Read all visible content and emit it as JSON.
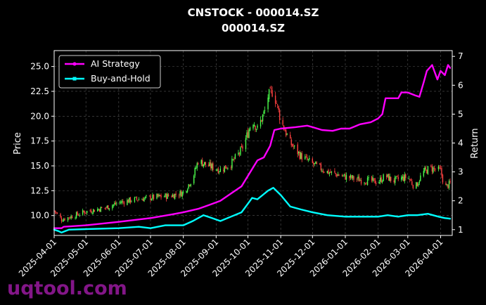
{
  "chart_data": {
    "type": "line",
    "title": "CNSTOCK - 000014.SZ",
    "subtitle": "000014.SZ",
    "ylabel_left": "Price",
    "ylabel_right": "Return",
    "ylim_left": [
      8.0,
      26.6
    ],
    "ylim_right": [
      0.8,
      7.2
    ],
    "yticks_left": [
      "10.0",
      "12.5",
      "15.0",
      "17.5",
      "20.0",
      "22.5",
      "25.0"
    ],
    "yticks_right": [
      "1",
      "2",
      "3",
      "4",
      "5",
      "6",
      "7"
    ],
    "xlim": [
      "2025-04-01",
      "2026-04-12"
    ],
    "xticks": [
      "2025-04-01",
      "2025-05-01",
      "2025-06-01",
      "2025-07-01",
      "2025-08-01",
      "2025-09-01",
      "2025-10-01",
      "2025-11-01",
      "2025-12-01",
      "2026-01-01",
      "2026-02-01",
      "2026-03-01",
      "2026-04-01"
    ],
    "grid": true,
    "legend_position": "top-left",
    "candle_up_color": "#4cff4c",
    "candle_down_color": "#ff4040",
    "series": [
      {
        "name": "AI Strategy",
        "axis": "right",
        "color": "#ff00ff",
        "points": [
          [
            "2025-04-01",
            1.05
          ],
          [
            "2025-04-08",
            1.05
          ],
          [
            "2025-04-10",
            1.1
          ],
          [
            "2025-05-01",
            1.15
          ],
          [
            "2025-06-01",
            1.27
          ],
          [
            "2025-07-01",
            1.4
          ],
          [
            "2025-07-20",
            1.52
          ],
          [
            "2025-08-01",
            1.6
          ],
          [
            "2025-08-15",
            1.72
          ],
          [
            "2025-08-25",
            1.85
          ],
          [
            "2025-09-05",
            2.0
          ],
          [
            "2025-09-15",
            2.25
          ],
          [
            "2025-09-25",
            2.5
          ],
          [
            "2025-10-05",
            3.1
          ],
          [
            "2025-10-10",
            3.4
          ],
          [
            "2025-10-16",
            3.5
          ],
          [
            "2025-10-22",
            3.9
          ],
          [
            "2025-10-26",
            4.45
          ],
          [
            "2025-11-01",
            4.5
          ],
          [
            "2025-11-15",
            4.55
          ],
          [
            "2025-11-26",
            4.6
          ],
          [
            "2025-12-01",
            4.55
          ],
          [
            "2025-12-10",
            4.45
          ],
          [
            "2025-12-20",
            4.42
          ],
          [
            "2025-12-28",
            4.5
          ],
          [
            "2026-01-05",
            4.5
          ],
          [
            "2026-01-15",
            4.65
          ],
          [
            "2026-01-25",
            4.72
          ],
          [
            "2026-02-01",
            4.85
          ],
          [
            "2026-02-05",
            5.0
          ],
          [
            "2026-02-08",
            5.55
          ],
          [
            "2026-02-20",
            5.55
          ],
          [
            "2026-02-23",
            5.75
          ],
          [
            "2026-03-01",
            5.75
          ],
          [
            "2026-03-08",
            5.65
          ],
          [
            "2026-03-12",
            5.6
          ],
          [
            "2026-03-16",
            6.1
          ],
          [
            "2026-03-19",
            6.5
          ],
          [
            "2026-03-24",
            6.7
          ],
          [
            "2026-03-29",
            6.2
          ],
          [
            "2026-04-01",
            6.5
          ],
          [
            "2026-04-05",
            6.35
          ],
          [
            "2026-04-08",
            6.7
          ],
          [
            "2026-04-10",
            6.6
          ]
        ]
      },
      {
        "name": "Buy-and-Hold",
        "axis": "right",
        "color": "#00ffff",
        "points": [
          [
            "2025-04-01",
            1.0
          ],
          [
            "2025-04-05",
            0.95
          ],
          [
            "2025-04-08",
            0.9
          ],
          [
            "2025-04-15",
            1.0
          ],
          [
            "2025-05-01",
            1.02
          ],
          [
            "2025-06-01",
            1.05
          ],
          [
            "2025-06-20",
            1.1
          ],
          [
            "2025-07-01",
            1.05
          ],
          [
            "2025-07-15",
            1.15
          ],
          [
            "2025-08-01",
            1.15
          ],
          [
            "2025-08-10",
            1.3
          ],
          [
            "2025-08-20",
            1.5
          ],
          [
            "2025-08-28",
            1.4
          ],
          [
            "2025-09-05",
            1.3
          ],
          [
            "2025-09-15",
            1.45
          ],
          [
            "2025-09-25",
            1.6
          ],
          [
            "2025-10-01",
            1.9
          ],
          [
            "2025-10-05",
            2.1
          ],
          [
            "2025-10-10",
            2.05
          ],
          [
            "2025-10-15",
            2.2
          ],
          [
            "2025-10-20",
            2.35
          ],
          [
            "2025-10-25",
            2.45
          ],
          [
            "2025-11-01",
            2.2
          ],
          [
            "2025-11-10",
            1.8
          ],
          [
            "2025-11-20",
            1.7
          ],
          [
            "2025-12-01",
            1.6
          ],
          [
            "2025-12-15",
            1.5
          ],
          [
            "2026-01-01",
            1.45
          ],
          [
            "2026-01-15",
            1.45
          ],
          [
            "2026-02-01",
            1.45
          ],
          [
            "2026-02-10",
            1.5
          ],
          [
            "2026-02-20",
            1.45
          ],
          [
            "2026-03-01",
            1.5
          ],
          [
            "2026-03-10",
            1.5
          ],
          [
            "2026-03-20",
            1.55
          ],
          [
            "2026-03-30",
            1.45
          ],
          [
            "2026-04-05",
            1.4
          ],
          [
            "2026-04-10",
            1.38
          ]
        ]
      }
    ],
    "price_path": [
      [
        "2025-04-01",
        10.5
      ],
      [
        "2025-04-08",
        9.6
      ],
      [
        "2025-04-20",
        10.0
      ],
      [
        "2025-05-01",
        10.4
      ],
      [
        "2025-05-20",
        10.8
      ],
      [
        "2025-06-01",
        11.3
      ],
      [
        "2025-06-15",
        11.6
      ],
      [
        "2025-07-01",
        11.8
      ],
      [
        "2025-07-20",
        12.0
      ],
      [
        "2025-08-01",
        12.3
      ],
      [
        "2025-08-10",
        13.8
      ],
      [
        "2025-08-15",
        15.5
      ],
      [
        "2025-08-25",
        15.0
      ],
      [
        "2025-09-05",
        14.6
      ],
      [
        "2025-09-15",
        15.2
      ],
      [
        "2025-09-25",
        16.6
      ],
      [
        "2025-10-01",
        18.3
      ],
      [
        "2025-10-05",
        19.7
      ],
      [
        "2025-10-10",
        18.7
      ],
      [
        "2025-10-17",
        20.5
      ],
      [
        "2025-10-20",
        22.0
      ],
      [
        "2025-10-25",
        22.6
      ],
      [
        "2025-11-01",
        19.6
      ],
      [
        "2025-11-10",
        17.3
      ],
      [
        "2025-11-20",
        16.0
      ],
      [
        "2025-12-01",
        15.2
      ],
      [
        "2025-12-15",
        14.4
      ],
      [
        "2026-01-01",
        13.9
      ],
      [
        "2026-01-15",
        13.6
      ],
      [
        "2026-02-01",
        13.4
      ],
      [
        "2026-02-08",
        14.0
      ],
      [
        "2026-02-15",
        13.5
      ],
      [
        "2026-03-01",
        13.9
      ],
      [
        "2026-03-08",
        12.8
      ],
      [
        "2026-03-15",
        14.3
      ],
      [
        "2026-03-22",
        14.8
      ],
      [
        "2026-04-01",
        14.5
      ],
      [
        "2026-04-05",
        12.8
      ],
      [
        "2026-04-10",
        13.2
      ]
    ]
  },
  "watermark": "uqtool.com"
}
